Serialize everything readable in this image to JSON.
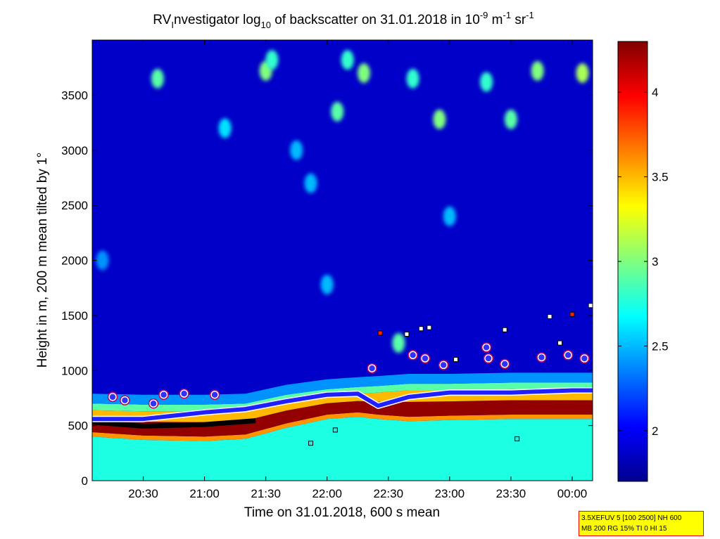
{
  "chart_data": {
    "type": "heatmap",
    "title": {
      "prefix": "RV",
      "prefix_sub": "I",
      "main1": "nvestigator log",
      "main_sub": "10",
      "main2": " of backscatter on 31.01.2018 in 10",
      "exp1": "-9",
      "unit1": " m",
      "exp2": "-1",
      "unit2": " sr",
      "exp3": "-1"
    },
    "xlabel": "Time on 31.01.2018, 600 s mean",
    "ylabel": "Height in m, 200 m mean tilted by 1°",
    "x_range": [
      "20:05",
      "00:10"
    ],
    "y_range": [
      0,
      4000
    ],
    "x_ticks": [
      {
        "label": "20:30",
        "t": "20:30"
      },
      {
        "label": "21:00",
        "t": "21:00"
      },
      {
        "label": "21:30",
        "t": "21:30"
      },
      {
        "label": "22:00",
        "t": "22:00"
      },
      {
        "label": "22:30",
        "t": "22:30"
      },
      {
        "label": "23:00",
        "t": "23:00"
      },
      {
        "label": "23:30",
        "t": "23:30"
      },
      {
        "label": "00:00",
        "t": "24:00"
      }
    ],
    "y_ticks": [
      0,
      500,
      1000,
      1500,
      2000,
      2500,
      3000,
      3500
    ],
    "colorbar": {
      "range": [
        1.7,
        4.3
      ],
      "ticks": [
        "2",
        "2.5",
        "3",
        "3.5",
        "4"
      ],
      "colormap": "jet"
    },
    "boundary_layer": [
      {
        "t": "20:05",
        "base": 440,
        "top": 700,
        "mid": 560
      },
      {
        "t": "20:30",
        "base": 410,
        "top": 690,
        "mid": 560
      },
      {
        "t": "21:00",
        "base": 400,
        "top": 690,
        "mid": 620
      },
      {
        "t": "21:20",
        "base": 420,
        "top": 700,
        "mid": 650
      },
      {
        "t": "21:40",
        "base": 520,
        "top": 780,
        "mid": 720
      },
      {
        "t": "22:00",
        "base": 600,
        "top": 830,
        "mid": 780
      },
      {
        "t": "22:15",
        "base": 620,
        "top": 850,
        "mid": 790
      },
      {
        "t": "22:25",
        "base": 600,
        "top": 860,
        "mid": 680
      },
      {
        "t": "22:40",
        "base": 580,
        "top": 880,
        "mid": 760
      },
      {
        "t": "23:00",
        "base": 590,
        "top": 880,
        "mid": 800
      },
      {
        "t": "23:30",
        "base": 600,
        "top": 890,
        "mid": 800
      },
      {
        "t": "24:00",
        "base": 600,
        "top": 890,
        "mid": 820
      },
      {
        "t": "24:10",
        "base": 600,
        "top": 890,
        "mid": 820
      }
    ],
    "cloud_patches": [
      {
        "t": "20:10",
        "h": 2000,
        "level": 2.4
      },
      {
        "t": "20:37",
        "h": 3650,
        "level": 2.9
      },
      {
        "t": "21:10",
        "h": 3200,
        "level": 2.6
      },
      {
        "t": "21:30",
        "h": 3720,
        "level": 3.0
      },
      {
        "t": "21:33",
        "h": 3820,
        "level": 2.8
      },
      {
        "t": "21:45",
        "h": 3000,
        "level": 2.5
      },
      {
        "t": "21:52",
        "h": 2700,
        "level": 2.5
      },
      {
        "t": "22:05",
        "h": 3350,
        "level": 2.9
      },
      {
        "t": "22:10",
        "h": 3820,
        "level": 2.8
      },
      {
        "t": "22:18",
        "h": 3700,
        "level": 3.0
      },
      {
        "t": "22:42",
        "h": 3650,
        "level": 2.8
      },
      {
        "t": "22:55",
        "h": 3280,
        "level": 3.0
      },
      {
        "t": "23:18",
        "h": 3620,
        "level": 2.8
      },
      {
        "t": "23:30",
        "h": 3280,
        "level": 2.9
      },
      {
        "t": "23:43",
        "h": 3720,
        "level": 3.0
      },
      {
        "t": "24:05",
        "h": 3700,
        "level": 3.1
      },
      {
        "t": "22:00",
        "h": 1780,
        "level": 2.5
      },
      {
        "t": "23:00",
        "h": 2400,
        "level": 2.5
      },
      {
        "t": "22:35",
        "h": 1250,
        "level": 2.9
      }
    ],
    "layer_height_circles": [
      {
        "t": "20:15",
        "h": 760
      },
      {
        "t": "20:21",
        "h": 730
      },
      {
        "t": "20:35",
        "h": 700
      },
      {
        "t": "20:40",
        "h": 780
      },
      {
        "t": "20:50",
        "h": 790
      },
      {
        "t": "21:05",
        "h": 780
      },
      {
        "t": "22:22",
        "h": 1020
      },
      {
        "t": "22:42",
        "h": 1140
      },
      {
        "t": "22:48",
        "h": 1110
      },
      {
        "t": "22:57",
        "h": 1050
      },
      {
        "t": "23:18",
        "h": 1210
      },
      {
        "t": "23:19",
        "h": 1110
      },
      {
        "t": "23:27",
        "h": 1060
      },
      {
        "t": "23:45",
        "h": 1120
      },
      {
        "t": "23:58",
        "h": 1140
      },
      {
        "t": "24:06",
        "h": 1110
      }
    ],
    "cloud_base_squares": [
      {
        "t": "22:26",
        "h": 1340,
        "color": "#ff2000"
      },
      {
        "t": "22:39",
        "h": 1330,
        "color": "#ffffff"
      },
      {
        "t": "22:46",
        "h": 1380,
        "color": "#ffffff"
      },
      {
        "t": "22:50",
        "h": 1390,
        "color": "#ffffff"
      },
      {
        "t": "23:03",
        "h": 1100,
        "color": "#ffffff"
      },
      {
        "t": "23:27",
        "h": 1370,
        "color": "#ffffff"
      },
      {
        "t": "23:49",
        "h": 1490,
        "color": "#ffffff"
      },
      {
        "t": "23:54",
        "h": 1250,
        "color": "#ffffff"
      },
      {
        "t": "24:00",
        "h": 1510,
        "color": "#ff2000"
      },
      {
        "t": "24:09",
        "h": 1590,
        "color": "#ffffff"
      },
      {
        "t": "21:52",
        "h": 340,
        "color": "#40e0e0"
      },
      {
        "t": "22:04",
        "h": 460,
        "color": "#40e0e0"
      },
      {
        "t": "23:33",
        "h": 380,
        "color": "#40e0e0"
      }
    ],
    "mixing_layer_line": [
      {
        "t": "20:05",
        "h": 530
      },
      {
        "t": "20:30",
        "h": 495
      },
      {
        "t": "21:00",
        "h": 510
      },
      {
        "t": "21:25",
        "h": 545
      }
    ]
  },
  "info_box": {
    "line1": "3.5XEFUV 5 [100 2500] NH 600",
    "line2": "MB 200 RG 15% TI 0 HI 15"
  }
}
